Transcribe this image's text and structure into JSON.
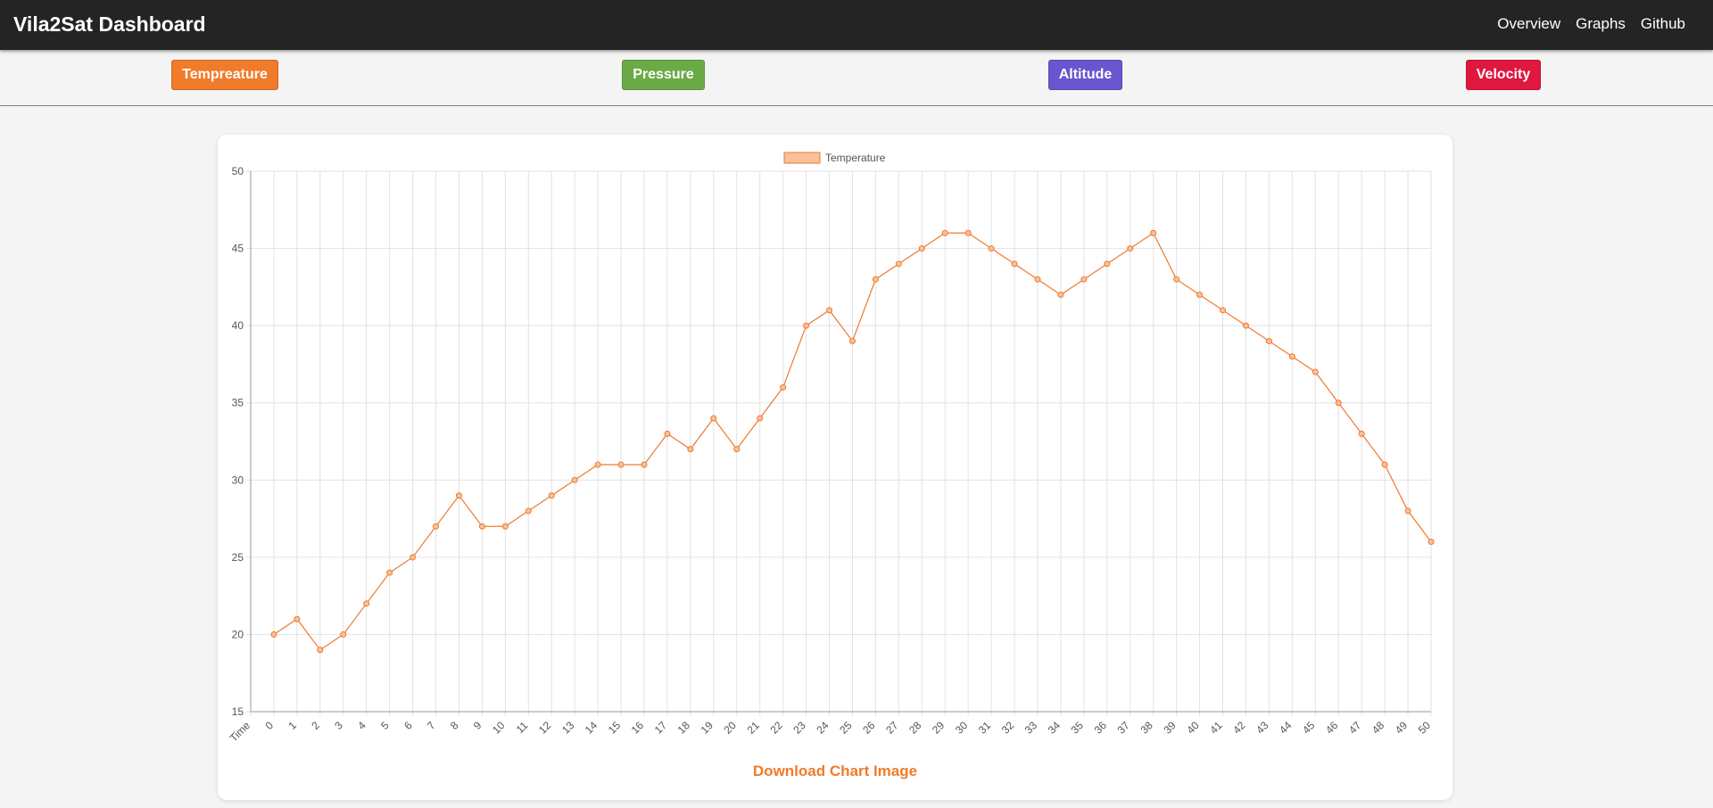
{
  "app": {
    "title": "Vila2Sat Dashboard"
  },
  "nav": {
    "links": [
      "Overview",
      "Graphs",
      "Github"
    ]
  },
  "tabs": [
    {
      "label": "Tempreature",
      "color": "#f07b2a"
    },
    {
      "label": "Pressure",
      "color": "#6aab45"
    },
    {
      "label": "Altitude",
      "color": "#6a55cf"
    },
    {
      "label": "Velocity",
      "color": "#e0173f"
    }
  ],
  "download_label": "Download Chart Image",
  "colors": {
    "accent": "#f07b2a",
    "line": "#ee7a2e",
    "legend_fill": "#f9c09a",
    "grid": "#e2e2e2",
    "axis": "#9a9a9a",
    "nav_bg": "#242424",
    "page_bg": "#f4f4f4"
  },
  "chart_data": {
    "type": "line",
    "title": "",
    "xlabel": "",
    "ylabel": "",
    "categories": [
      "Time",
      "0",
      "1",
      "2",
      "3",
      "4",
      "5",
      "6",
      "7",
      "8",
      "9",
      "10",
      "11",
      "12",
      "13",
      "14",
      "15",
      "16",
      "17",
      "18",
      "19",
      "20",
      "21",
      "22",
      "23",
      "24",
      "25",
      "26",
      "27",
      "28",
      "29",
      "30",
      "31",
      "32",
      "33",
      "34",
      "35",
      "36",
      "37",
      "38",
      "39",
      "40",
      "41",
      "42",
      "43",
      "44",
      "45",
      "46",
      "47",
      "48",
      "49",
      "50"
    ],
    "series": [
      {
        "name": "Temperature",
        "values": [
          null,
          20,
          21,
          19,
          20,
          22,
          24,
          25,
          27,
          29,
          27,
          27,
          28,
          29,
          30,
          31,
          31,
          31,
          33,
          32,
          34,
          32,
          34,
          36,
          40,
          41,
          39,
          43,
          44,
          45,
          46,
          46,
          45,
          44,
          43,
          42,
          43,
          44,
          45,
          46,
          43,
          42,
          41,
          40,
          39,
          38,
          37,
          35,
          33,
          31,
          28,
          26
        ]
      }
    ],
    "ylim": [
      15,
      50
    ],
    "yticks": [
      15,
      20,
      25,
      30,
      35,
      40,
      45,
      50
    ],
    "grid": true,
    "legend": "top-center"
  }
}
